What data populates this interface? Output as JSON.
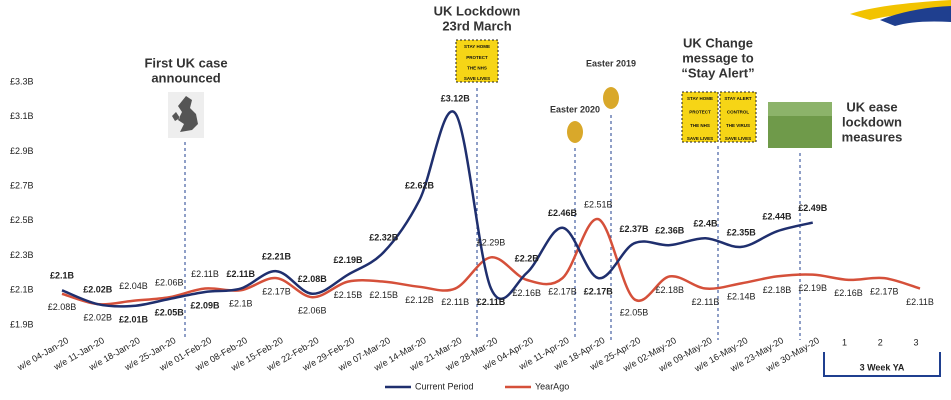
{
  "chart_data": {
    "type": "line",
    "categories": [
      "w/e 04-Jan-20",
      "w/e 11-Jan-20",
      "w/e 18-Jan-20",
      "w/e 25-Jan-20",
      "w/e 01-Feb-20",
      "w/e 08-Feb-20",
      "w/e 15-Feb-20",
      "w/e 22-Feb-20",
      "w/e 29-Feb-20",
      "w/e 07-Mar-20",
      "w/e 14-Mar-20",
      "w/e 21-Mar-20",
      "w/e 28-Mar-20",
      "w/e 04-Apr-20",
      "w/e 11-Apr-20",
      "w/e 18-Apr-20",
      "w/e 25-Apr-20",
      "w/e 02-May-20",
      "w/e 09-May-20",
      "w/e 16-May-20",
      "w/e 23-May-20",
      "w/e 30-May-20",
      "1",
      "2",
      "3"
    ],
    "series": [
      {
        "name": "Current Period",
        "color": "#1f2f6e",
        "values": [
          2.1,
          2.02,
          2.01,
          2.05,
          2.09,
          2.11,
          2.21,
          2.08,
          2.19,
          2.32,
          2.62,
          3.12,
          2.11,
          2.2,
          2.46,
          2.17,
          2.37,
          2.36,
          2.4,
          2.35,
          2.44,
          2.49,
          null,
          null,
          null
        ],
        "value_labels": [
          "£2.1B",
          "£2.02B",
          "£2.01B",
          "£2.05B",
          "£2.09B",
          "£2.11B",
          "£2.21B",
          "£2.08B",
          "£2.19B",
          "£2.32B",
          "£2.62B",
          "£3.12B",
          "£2.11B",
          "£2.2B",
          "£2.46B",
          "£2.17B",
          "£2.37B",
          "£2.36B",
          "£2.4B",
          "£2.35B",
          "£2.44B",
          "£2.49B",
          null,
          null,
          null
        ]
      },
      {
        "name": "YearAgo",
        "color": "#d5503a",
        "values": [
          2.08,
          2.02,
          2.04,
          2.06,
          2.11,
          2.1,
          2.17,
          2.06,
          2.15,
          2.15,
          2.12,
          2.11,
          2.29,
          2.16,
          2.17,
          2.51,
          2.05,
          2.18,
          2.11,
          2.14,
          2.18,
          2.19,
          2.16,
          2.17,
          2.11
        ],
        "value_labels": [
          "£2.08B",
          "£2.02B",
          "£2.04B",
          "£2.06B",
          "£2.11B",
          "£2.1B",
          "£2.17B",
          "£2.06B",
          "£2.15B",
          "£2.15B",
          "£2.12B",
          "£2.11B",
          "£2.29B",
          "£2.16B",
          "£2.17B",
          "£2.51B",
          "£2.05B",
          "£2.18B",
          "£2.11B",
          "£2.14B",
          "£2.18B",
          "£2.19B",
          "£2.16B",
          "£2.17B",
          "£2.11B"
        ]
      }
    ],
    "ylim": [
      1.9,
      3.3
    ],
    "yticks": [
      {
        "value": 1.9,
        "label": "£1.9B"
      },
      {
        "value": 2.1,
        "label": "£2.1B"
      },
      {
        "value": 2.3,
        "label": "£2.3B"
      },
      {
        "value": 2.5,
        "label": "£2.5B"
      },
      {
        "value": 2.7,
        "label": "£2.7B"
      },
      {
        "value": 2.9,
        "label": "£2.9B"
      },
      {
        "value": 3.1,
        "label": "£3.1B"
      },
      {
        "value": 3.3,
        "label": "£3.3B"
      }
    ],
    "annotations": [
      {
        "lines": [
          "First UK case",
          "announced"
        ]
      },
      {
        "lines": [
          "UK Lockdown",
          "23rd March"
        ],
        "sign": [
          "STAY HOME",
          "PROTECT",
          "THE NHS",
          "SAVE LIVES"
        ]
      },
      {
        "lines": [
          "Easter 2020"
        ]
      },
      {
        "lines": [
          "Easter 2019"
        ]
      },
      {
        "lines": [
          "UK Change",
          "message to",
          "“Stay Alert”"
        ],
        "sign": [
          "STAY HOME",
          "PROTECT",
          "THE NHS",
          "SAVE LIVES"
        ],
        "sign2": [
          "STAY ALERT",
          "CONTROL",
          "THE VIRUS",
          "SAVE LIVES"
        ]
      },
      {
        "lines": [
          "UK ease",
          "lockdown",
          "measures"
        ]
      }
    ],
    "bracket_label": "3 Week YA"
  }
}
